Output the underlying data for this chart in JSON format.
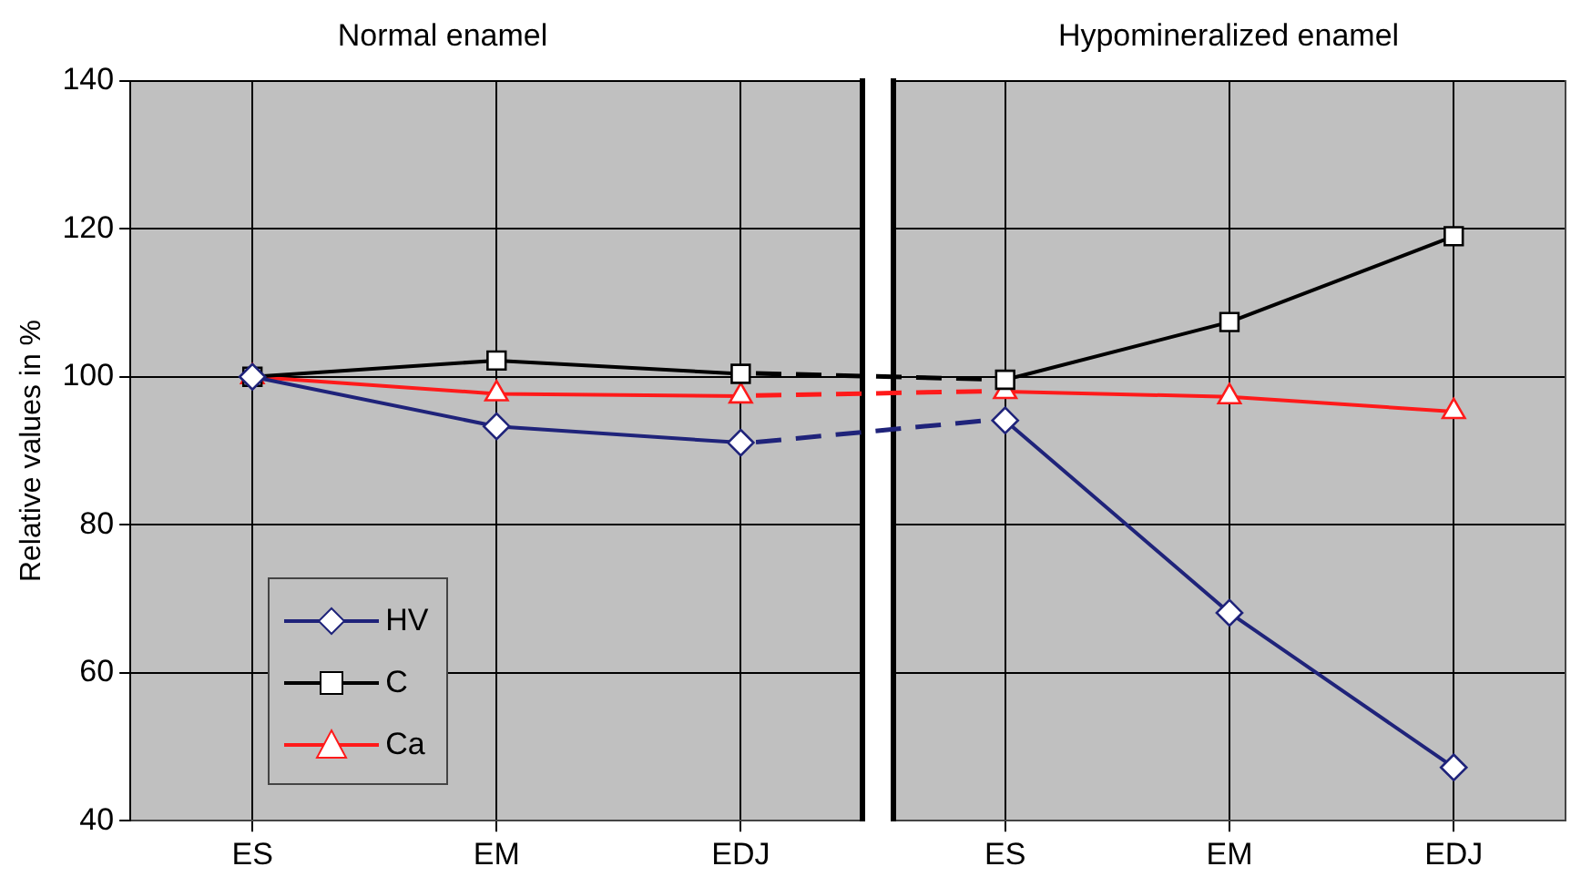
{
  "chart_data": [
    {
      "type": "line",
      "title": "Normal enamel",
      "ylabel": "Relative values in %",
      "categories": [
        "ES",
        "EM",
        "EDJ"
      ],
      "series": [
        {
          "name": "HV",
          "color": "#1f237a",
          "marker": "diamond",
          "values": [
            100,
            93.3,
            91.1
          ]
        },
        {
          "name": "C",
          "color": "#000000",
          "marker": "square",
          "values": [
            100,
            102.2,
            100.4
          ]
        },
        {
          "name": "Ca",
          "color": "#ff1a1a",
          "marker": "triangle",
          "values": [
            100,
            97.7,
            97.4
          ]
        }
      ],
      "ylim": [
        40,
        140
      ],
      "yticks": [
        40,
        60,
        80,
        100,
        120,
        140
      ],
      "grid": true,
      "legend": "bottom left",
      "line_style": "solid"
    },
    {
      "type": "line",
      "title": "Hypomineralized enamel",
      "categories": [
        "ES",
        "EM",
        "EDJ"
      ],
      "series": [
        {
          "color": "#1f237a",
          "marker": "diamond",
          "values": [
            94.1,
            68.1,
            47.2
          ]
        },
        {
          "color": "#000000",
          "marker": "square",
          "values": [
            99.6,
            107.4,
            119
          ]
        },
        {
          "color": "#ff1a1a",
          "marker": "triangle",
          "values": [
            98,
            97.3,
            95.3
          ]
        }
      ],
      "ylim": [
        40,
        140
      ],
      "yticks": [
        40,
        60,
        80,
        100,
        120,
        140
      ],
      "grid": true,
      "line_style": "solid",
      "tick_labels": "x"
    }
  ]
}
